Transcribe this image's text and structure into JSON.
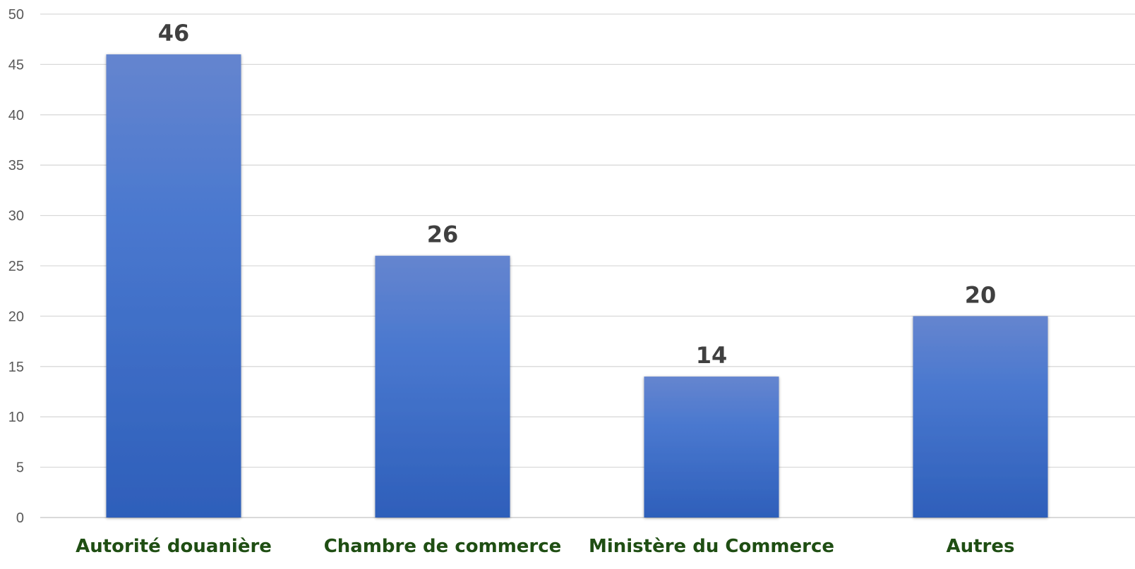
{
  "chart_data": {
    "type": "bar",
    "title": "",
    "xlabel": "",
    "ylabel": "",
    "categories": [
      "Autorité douanière",
      "Chambre de commerce",
      "Ministère du Commerce",
      "Autres"
    ],
    "values": [
      46,
      26,
      14,
      20
    ],
    "data_labels": [
      "46",
      "26",
      "14",
      "20"
    ],
    "ylim": [
      0,
      50
    ],
    "yticks": [
      0,
      5,
      10,
      15,
      20,
      25,
      30,
      35,
      40,
      45,
      50
    ],
    "grid": true,
    "legend": "none",
    "colors": {
      "bar_top": "#6585CF",
      "bar_bottom": "#2E5FBA",
      "grid": "#D9D9D9",
      "category_text": "#1F4E13",
      "value_text": "#404040",
      "tick_text": "#595959"
    }
  }
}
